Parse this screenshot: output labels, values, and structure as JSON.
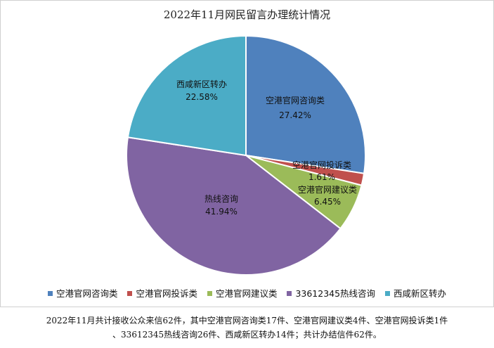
{
  "chart_data": {
    "type": "pie",
    "title": "2022年11月网民留言办理统计情况",
    "slices": [
      {
        "name": "空港官网咨询类",
        "value": 17,
        "percent_label": "27.42%",
        "color": "#4F81BD"
      },
      {
        "name": "空港官网投诉类",
        "value": 1,
        "percent_label": "1.61%",
        "color": "#C0504D"
      },
      {
        "name": "空港官网建议类",
        "value": 4,
        "percent_label": "6.45%",
        "color": "#9BBB59"
      },
      {
        "name": "热线咨询",
        "legend_name": "33612345热线咨询",
        "value": 26,
        "percent_label": "41.94%",
        "color": "#8064A2"
      },
      {
        "name": "西咸新区转办",
        "value": 14,
        "percent_label": "22.58%",
        "color": "#4BACC6"
      }
    ],
    "legend_position": "bottom"
  },
  "summary": {
    "line1": "2022年11月共计接收公众来信62件，其中空港官网咨询类17件、空港官网建议类4件、空港官网投诉类1件",
    "line2": "、33612345热线咨询26件、西咸新区转办14件；共计办结信件62件。"
  }
}
